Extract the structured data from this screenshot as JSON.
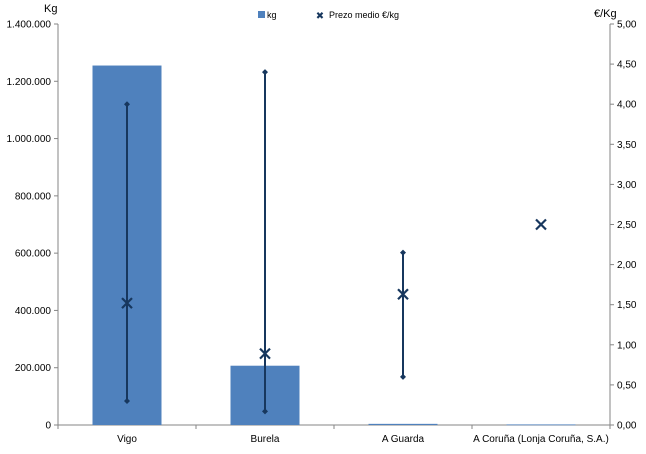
{
  "chart_data": {
    "type": "bar",
    "categories": [
      "Vigo",
      "Burela",
      "A Guarda",
      "A Coruña (Lonja Coruña, S.A.)"
    ],
    "y_left_label": "Kg",
    "y_right_label": "€/Kg",
    "y_left_range": [
      0,
      1400000
    ],
    "y_right_range": [
      0,
      5
    ],
    "y_left_ticks": [
      "0",
      "200.000",
      "400.000",
      "600.000",
      "800.000",
      "1.000.000",
      "1.200.000",
      "1.400.000"
    ],
    "y_right_ticks": [
      "0,00",
      "0,50",
      "1,00",
      "1,50",
      "2,00",
      "2,50",
      "3,00",
      "3,50",
      "4,00",
      "4,50",
      "5,00"
    ],
    "grid": false,
    "legend_position": "top",
    "series": [
      {
        "name": "kg",
        "type": "bar",
        "axis": "left",
        "color": "#4F81BD",
        "values": [
          1255000,
          207000,
          4000,
          2000
        ]
      },
      {
        "name": "Prezo medio €/kg",
        "type": "marker",
        "axis": "right",
        "color": "#17375E",
        "values": [
          1.52,
          0.89,
          1.63,
          2.5
        ]
      }
    ],
    "price_ranges": {
      "min": [
        0.3,
        0.17,
        0.6,
        null
      ],
      "max": [
        4.0,
        4.4,
        2.15,
        null
      ]
    }
  }
}
